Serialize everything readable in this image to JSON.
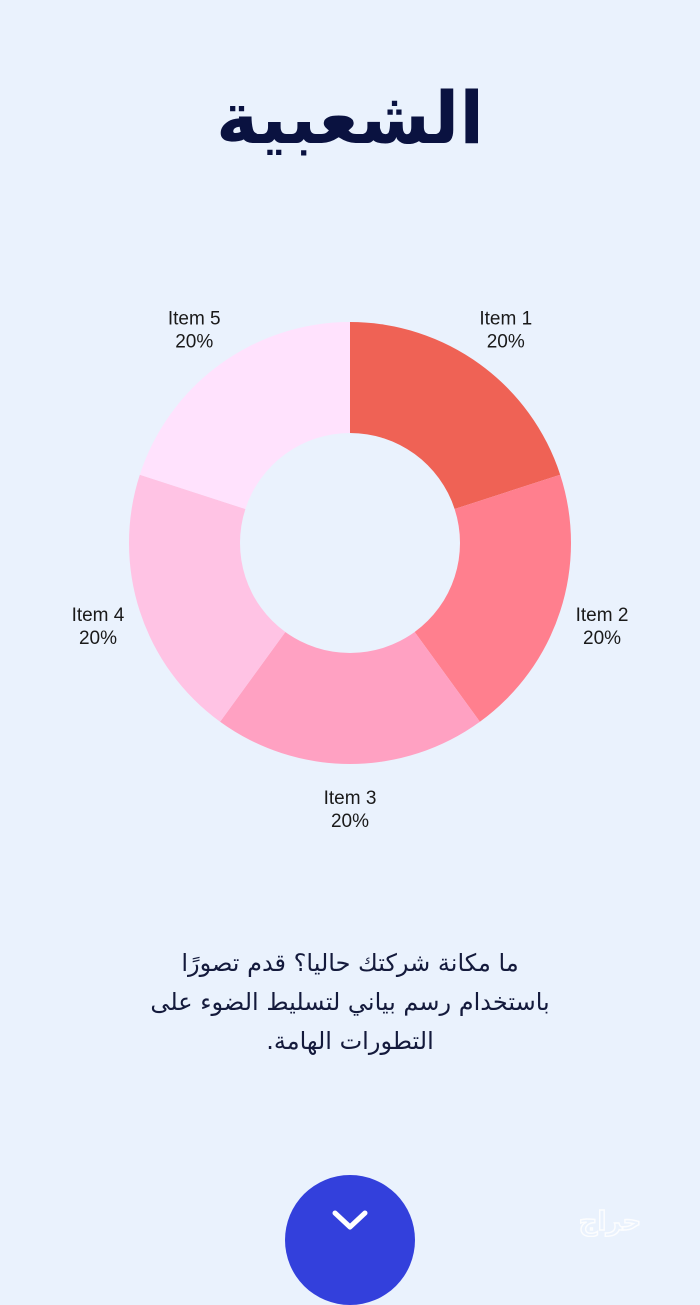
{
  "header": {
    "title": "الشعبية"
  },
  "chart_data": {
    "type": "pie",
    "donut": true,
    "start_angle_deg": 0,
    "direction": "clockwise",
    "slices": [
      {
        "label": "Item 1",
        "value": 20,
        "value_label": "20%",
        "color": "#ef6255"
      },
      {
        "label": "Item 2",
        "value": 20,
        "value_label": "20%",
        "color": "#ff7f8e"
      },
      {
        "label": "Item 3",
        "value": 20,
        "value_label": "20%",
        "color": "#ffa1c2"
      },
      {
        "label": "Item 4",
        "value": 20,
        "value_label": "20%",
        "color": "#ffc3e4"
      },
      {
        "label": "Item 5",
        "value": 20,
        "value_label": "20%",
        "color": "#ffe2fd"
      }
    ]
  },
  "description": {
    "line1": "ما مكانة شركتك حاليا؟ قدم تصورًا",
    "line2": "باستخدام رسم بياني لتسليط الضوء على",
    "line3": "التطورات الهامة."
  },
  "scroll_button": {
    "icon": "chevron-down-icon",
    "color": "#3340dc"
  },
  "watermark": {
    "text": "حراج"
  },
  "colors": {
    "background": "#eaf2fd",
    "title": "#0a1240",
    "body_text": "#141a3c"
  }
}
